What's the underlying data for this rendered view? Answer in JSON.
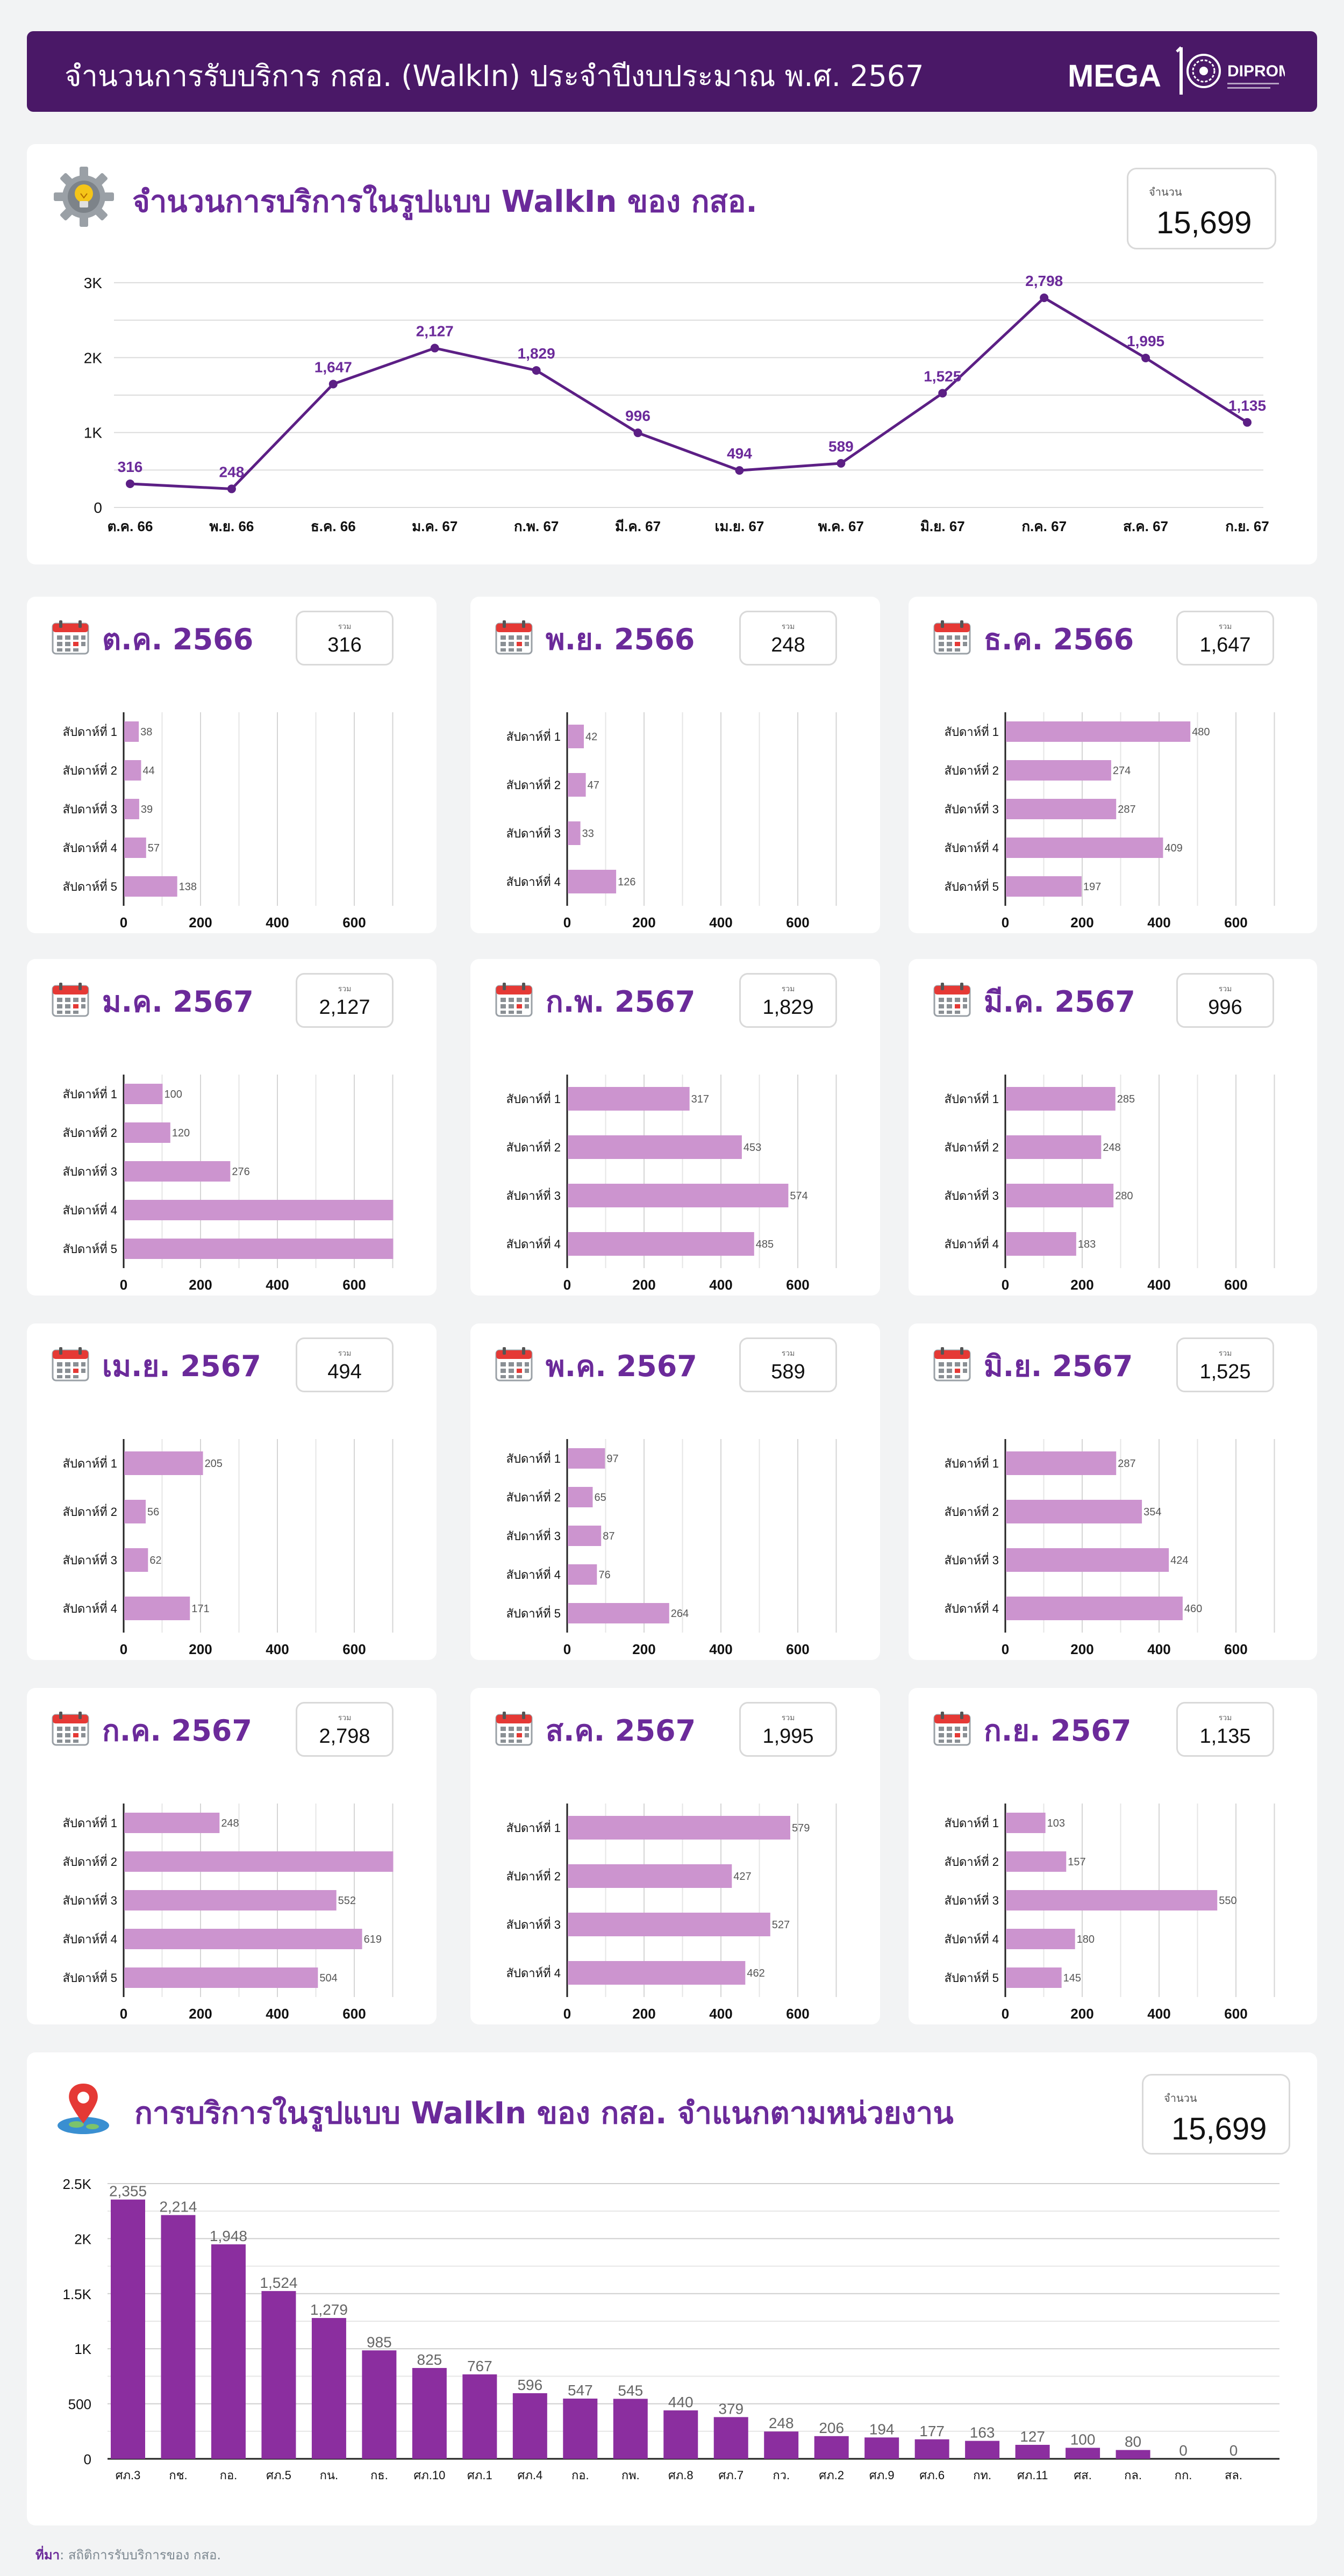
{
  "header": {
    "title": "จำนวนการรับบริการ กสอ. (WalkIn) ประจำปีงบประมาณ พ.ศ. 2567",
    "brand": "MEGA",
    "logo_text": "DIPROM"
  },
  "colors": {
    "header": "#4a1867",
    "accent": "#6b2a9a",
    "bar_light": "#cc94cf",
    "bar_dark": "#8b2e9f",
    "line": "#5c1f85"
  },
  "trend": {
    "title": "จำนวนการบริการในรูปแบบ WalkIn ของ กสอ.",
    "total_caption": "จำนวน",
    "total_value": "15,699",
    "icon": "gear-bulb-icon"
  },
  "months": [
    {
      "label": "ต.ค. 2566",
      "caption": "รวม",
      "total": "316"
    },
    {
      "label": "พ.ย. 2566",
      "caption": "รวม",
      "total": "248"
    },
    {
      "label": "ธ.ค. 2566",
      "caption": "รวม",
      "total": "1,647"
    },
    {
      "label": "ม.ค. 2567",
      "caption": "รวม",
      "total": "2,127"
    },
    {
      "label": "ก.พ. 2567",
      "caption": "รวม",
      "total": "1,829"
    },
    {
      "label": "มี.ค. 2567",
      "caption": "รวม",
      "total": "996"
    },
    {
      "label": "เม.ย. 2567",
      "caption": "รวม",
      "total": "494"
    },
    {
      "label": "พ.ค. 2567",
      "caption": "รวม",
      "total": "589"
    },
    {
      "label": "มิ.ย. 2567",
      "caption": "รวม",
      "total": "1,525"
    },
    {
      "label": "ก.ค. 2567",
      "caption": "รวม",
      "total": "2,798"
    },
    {
      "label": "ส.ค. 2567",
      "caption": "รวม",
      "total": "1,995"
    },
    {
      "label": "ก.ย. 2567",
      "caption": "รวม",
      "total": "1,135"
    }
  ],
  "unit_section": {
    "title": "การบริการในรูปแบบ WalkIn ของ กสอ. จำแนกตามหน่วยงาน",
    "total_caption": "จำนวน",
    "total_value": "15,699",
    "icon": "map-pin-icon"
  },
  "source": {
    "label": "ที่มา",
    "text": ": สถิติการรับบริการของ กสอ."
  },
  "chart_data": [
    {
      "type": "line",
      "categories": [
        "ต.ค. 66",
        "พ.ย. 66",
        "ธ.ค. 66",
        "ม.ค. 67",
        "ก.พ. 67",
        "มี.ค. 67",
        "เม.ย. 67",
        "พ.ค. 67",
        "มิ.ย. 67",
        "ก.ค. 67",
        "ส.ค. 67",
        "ก.ย. 67"
      ],
      "values": [
        316,
        248,
        1647,
        2127,
        1829,
        996,
        494,
        589,
        1525,
        2798,
        1995,
        1135
      ],
      "data_labels": [
        "316",
        "248",
        "1,647",
        "2,127",
        "1,829",
        "996",
        "494",
        "589",
        "1,525",
        "2,798",
        "1,995",
        "1,135"
      ],
      "yticks": [
        "0",
        "1K",
        "2K",
        "3K"
      ],
      "ylim": [
        0,
        3200
      ],
      "grid": true
    },
    {
      "type": "bar",
      "orientation": "horizontal",
      "categories": [
        "สัปดาห์ที่ 1",
        "สัปดาห์ที่ 2",
        "สัปดาห์ที่ 3",
        "สัปดาห์ที่ 4",
        "สัปดาห์ที่ 5"
      ],
      "values": [
        38,
        44,
        39,
        57,
        138
      ],
      "xticks": [
        "0",
        "200",
        "400",
        "600"
      ],
      "xlim": [
        0,
        700
      ]
    },
    {
      "type": "bar",
      "orientation": "horizontal",
      "categories": [
        "สัปดาห์ที่ 1",
        "สัปดาห์ที่ 2",
        "สัปดาห์ที่ 3",
        "สัปดาห์ที่ 4"
      ],
      "values": [
        42,
        47,
        33,
        126
      ],
      "xticks": [
        "0",
        "200",
        "400",
        "600"
      ],
      "xlim": [
        0,
        700
      ]
    },
    {
      "type": "bar",
      "orientation": "horizontal",
      "categories": [
        "สัปดาห์ที่ 1",
        "สัปดาห์ที่ 2",
        "สัปดาห์ที่ 3",
        "สัปดาห์ที่ 4",
        "สัปดาห์ที่ 5"
      ],
      "values": [
        480,
        274,
        287,
        409,
        197
      ],
      "xticks": [
        "0",
        "200",
        "400",
        "600"
      ],
      "xlim": [
        0,
        700
      ]
    },
    {
      "type": "bar",
      "orientation": "horizontal",
      "categories": [
        "สัปดาห์ที่ 1",
        "สัปดาห์ที่ 2",
        "สัปดาห์ที่ 3",
        "สัปดาห์ที่ 4",
        "สัปดาห์ที่ 5"
      ],
      "values": [
        100,
        120,
        276,
        700,
        700
      ],
      "value_labels": [
        "100",
        "120",
        "276",
        "",
        ""
      ],
      "xticks": [
        "0",
        "200",
        "400",
        "600"
      ],
      "xlim": [
        0,
        700
      ]
    },
    {
      "type": "bar",
      "orientation": "horizontal",
      "categories": [
        "สัปดาห์ที่ 1",
        "สัปดาห์ที่ 2",
        "สัปดาห์ที่ 3",
        "สัปดาห์ที่ 4"
      ],
      "values": [
        317,
        453,
        574,
        485
      ],
      "xticks": [
        "0",
        "200",
        "400",
        "600"
      ],
      "xlim": [
        0,
        700
      ]
    },
    {
      "type": "bar",
      "orientation": "horizontal",
      "categories": [
        "สัปดาห์ที่ 1",
        "สัปดาห์ที่ 2",
        "สัปดาห์ที่ 3",
        "สัปดาห์ที่ 4"
      ],
      "values": [
        285,
        248,
        280,
        183
      ],
      "xticks": [
        "0",
        "200",
        "400",
        "600"
      ],
      "xlim": [
        0,
        700
      ]
    },
    {
      "type": "bar",
      "orientation": "horizontal",
      "categories": [
        "สัปดาห์ที่ 1",
        "สัปดาห์ที่ 2",
        "สัปดาห์ที่ 3",
        "สัปดาห์ที่ 4"
      ],
      "values": [
        205,
        56,
        62,
        171
      ],
      "xticks": [
        "0",
        "200",
        "400",
        "600"
      ],
      "xlim": [
        0,
        700
      ]
    },
    {
      "type": "bar",
      "orientation": "horizontal",
      "categories": [
        "สัปดาห์ที่ 1",
        "สัปดาห์ที่ 2",
        "สัปดาห์ที่ 3",
        "สัปดาห์ที่ 4",
        "สัปดาห์ที่ 5"
      ],
      "values": [
        97,
        65,
        87,
        76,
        264
      ],
      "xticks": [
        "0",
        "200",
        "400",
        "600"
      ],
      "xlim": [
        0,
        700
      ]
    },
    {
      "type": "bar",
      "orientation": "horizontal",
      "categories": [
        "สัปดาห์ที่ 1",
        "สัปดาห์ที่ 2",
        "สัปดาห์ที่ 3",
        "สัปดาห์ที่ 4"
      ],
      "values": [
        287,
        354,
        424,
        460
      ],
      "xticks": [
        "0",
        "200",
        "400",
        "600"
      ],
      "xlim": [
        0,
        700
      ]
    },
    {
      "type": "bar",
      "orientation": "horizontal",
      "categories": [
        "สัปดาห์ที่ 1",
        "สัปดาห์ที่ 2",
        "สัปดาห์ที่ 3",
        "สัปดาห์ที่ 4",
        "สัปดาห์ที่ 5"
      ],
      "values": [
        248,
        700,
        552,
        619,
        504
      ],
      "value_labels": [
        "248",
        "",
        "552",
        "619",
        "504"
      ],
      "xticks": [
        "0",
        "200",
        "400",
        "600"
      ],
      "xlim": [
        0,
        700
      ]
    },
    {
      "type": "bar",
      "orientation": "horizontal",
      "categories": [
        "สัปดาห์ที่ 1",
        "สัปดาห์ที่ 2",
        "สัปดาห์ที่ 3",
        "สัปดาห์ที่ 4"
      ],
      "values": [
        579,
        427,
        527,
        462
      ],
      "xticks": [
        "0",
        "200",
        "400",
        "600"
      ],
      "xlim": [
        0,
        700
      ]
    },
    {
      "type": "bar",
      "orientation": "horizontal",
      "categories": [
        "สัปดาห์ที่ 1",
        "สัปดาห์ที่ 2",
        "สัปดาห์ที่ 3",
        "สัปดาห์ที่ 4",
        "สัปดาห์ที่ 5"
      ],
      "values": [
        103,
        157,
        550,
        180,
        145
      ],
      "xticks": [
        "0",
        "200",
        "400",
        "600"
      ],
      "xlim": [
        0,
        700
      ]
    },
    {
      "type": "bar",
      "orientation": "vertical",
      "categories": [
        "ศภ.3",
        "กช.",
        "กอ.",
        "ศภ.5",
        "กน.",
        "กธ.",
        "ศภ.10",
        "ศภ.1",
        "ศภ.4",
        "กอ.",
        "กพ.",
        "ศภ.8",
        "ศภ.7",
        "กว.",
        "ศภ.2",
        "ศภ.9",
        "ศภ.6",
        "กท.",
        "ศภ.11",
        "ศส.",
        "กล.",
        "กก.",
        "สล."
      ],
      "values": [
        2355,
        2214,
        1948,
        1524,
        1279,
        985,
        825,
        767,
        596,
        547,
        545,
        440,
        379,
        248,
        206,
        194,
        177,
        163,
        127,
        100,
        80,
        0,
        0
      ],
      "data_labels": [
        "2,355",
        "2,214",
        "1,948",
        "1,524",
        "1,279",
        "985",
        "825",
        "767",
        "596",
        "547",
        "545",
        "440",
        "379",
        "248",
        "206",
        "194",
        "177",
        "163",
        "127",
        "100",
        "80",
        "0",
        "0"
      ],
      "yticks": [
        "0",
        "500",
        "1K",
        "1.5K",
        "2K",
        "2.5K"
      ],
      "ylim": [
        0,
        2500
      ],
      "grid": true
    }
  ]
}
